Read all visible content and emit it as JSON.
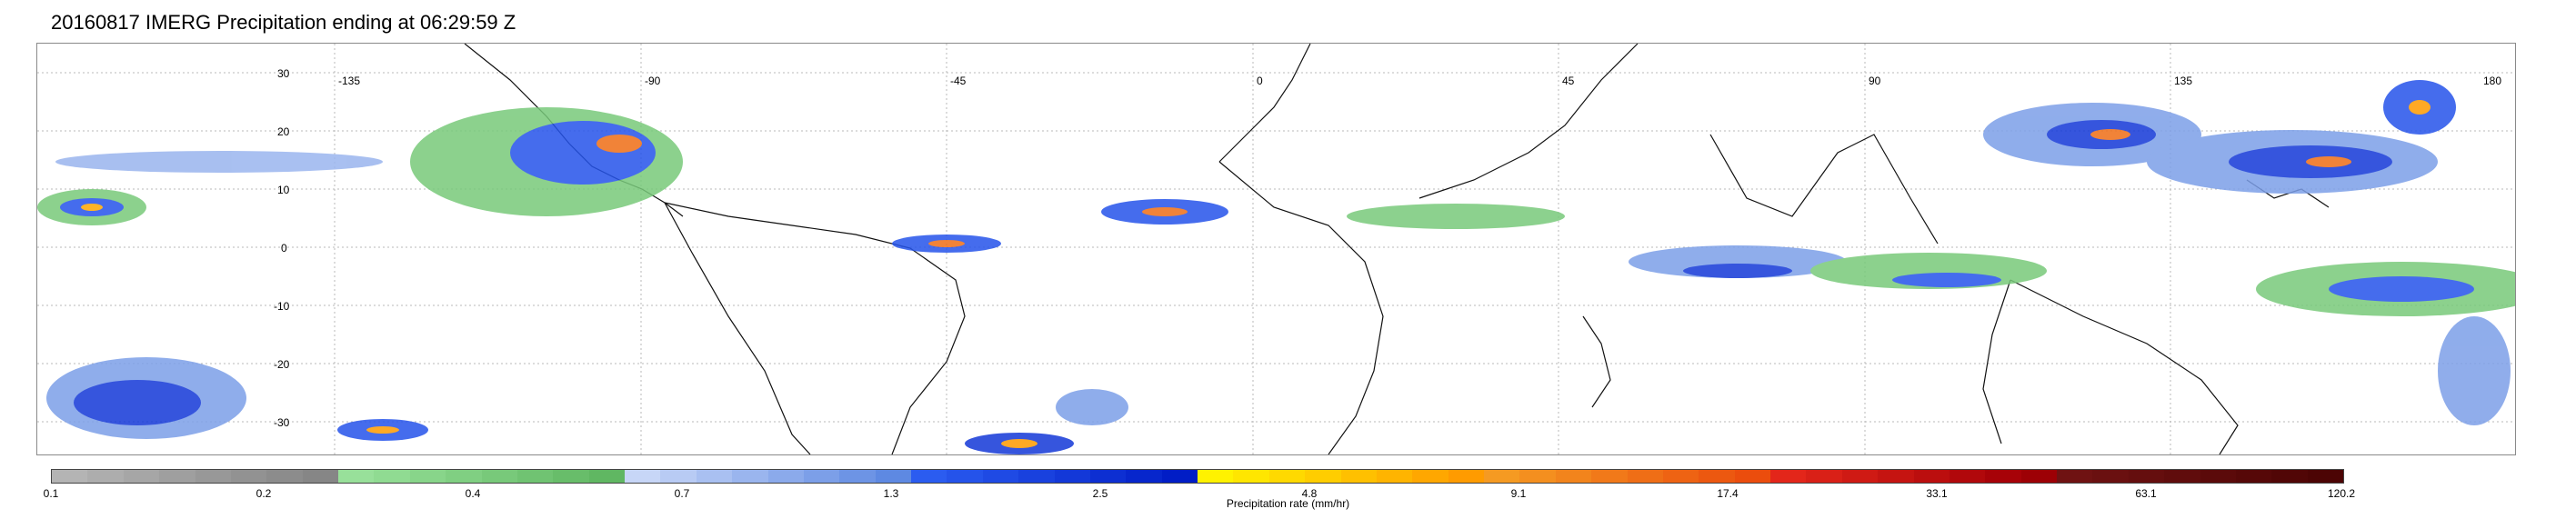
{
  "title": "20160817 IMERG Precipitation ending at 06:29:59 Z",
  "map": {
    "lat_labels": [
      "30",
      "20",
      "10",
      "0",
      "-10",
      "-20",
      "-30"
    ],
    "lon_labels": [
      "-135",
      "-90",
      "-45",
      "0",
      "45",
      "90",
      "135",
      "180"
    ]
  },
  "colorbar": {
    "tick_labels": [
      "0.1",
      "0.2",
      "0.4",
      "0.7",
      "1.3",
      "2.5",
      "4.8",
      "9.1",
      "17.4",
      "33.1",
      "63.1",
      "120.2"
    ],
    "title": "Precipitation rate (mm/hr)",
    "groups": [
      {
        "colors": [
          "#b4b4b4",
          "#adadad",
          "#a6a6a6",
          "#9f9f9f",
          "#989898",
          "#929292",
          "#8c8c8c",
          "#868686"
        ]
      },
      {
        "colors": [
          "#98e09a",
          "#90db92",
          "#88d58a",
          "#80cf82",
          "#78c97a",
          "#70c372",
          "#68bd6a",
          "#60b762"
        ]
      },
      {
        "colors": [
          "#c7d6f7",
          "#b8cbf4",
          "#a9c0f1",
          "#9ab5ee",
          "#8baaeb",
          "#7c9fe8",
          "#6d94e5",
          "#5e89e2"
        ]
      },
      {
        "colors": [
          "#2b5cf0",
          "#2553ea",
          "#1f4ae4",
          "#1941de",
          "#1338d8",
          "#0d2fd2",
          "#0726cc",
          "#011dc6"
        ]
      },
      {
        "colors": [
          "#fff200",
          "#ffe600",
          "#ffd900",
          "#ffcd00",
          "#ffc000",
          "#ffb400",
          "#ffa700",
          "#ff9b00"
        ]
      },
      {
        "colors": [
          "#f59a22",
          "#f48f1f",
          "#f2841c",
          "#f17919",
          "#ef6e16",
          "#ee6313",
          "#ec5810",
          "#eb4d0d"
        ]
      },
      {
        "colors": [
          "#e3261a",
          "#d92017",
          "#cf1a14",
          "#c51411",
          "#bb0e0e",
          "#b1080b",
          "#a70208",
          "#9d0005"
        ]
      },
      {
        "colors": [
          "#6f1212",
          "#6a1010",
          "#650e0e",
          "#600c0c",
          "#5b0a0a",
          "#560808",
          "#510606",
          "#4c0404"
        ]
      }
    ]
  }
}
